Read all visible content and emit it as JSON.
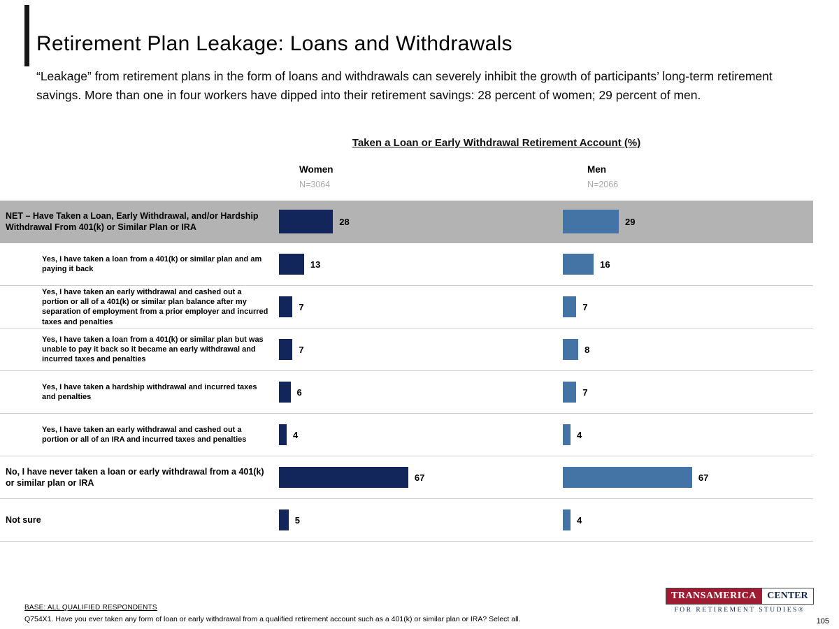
{
  "slide": {
    "title": "Retirement Plan Leakage: Loans and Withdrawals",
    "intro": "“Leakage” from retirement plans in the form of loans and withdrawals can severely inhibit the growth of participants’ long-term retirement savings. More than one in four workers have dipped into their retirement savings: 28 percent of women; 29 percent of men.",
    "page_number": "105"
  },
  "chart_data": {
    "type": "bar",
    "orientation": "horizontal",
    "title": "Taken a Loan or Early Withdrawal Retirement Account (%)",
    "value_unit": "%",
    "xlim": [
      0,
      100
    ],
    "grid": false,
    "legend_position": "column-headers",
    "highlight_row_color": "#b3b3b3",
    "categories": [
      {
        "label": "NET – Have Taken a Loan, Early Withdrawal, and/or Hardship Withdrawal From 401(k) or Similar Plan or IRA",
        "indent": false,
        "highlight": true
      },
      {
        "label": "Yes, I have taken a loan from a 401(k) or similar plan and am paying it back",
        "indent": true,
        "highlight": false
      },
      {
        "label": "Yes, I have taken an early withdrawal and cashed out a portion or all of a 401(k) or similar plan balance after my separation of employment from a prior employer and incurred taxes and penalties",
        "indent": true,
        "highlight": false
      },
      {
        "label": "Yes, I have taken a loan from a 401(k) or similar plan but was unable to pay it back so it became an early withdrawal and incurred taxes and penalties",
        "indent": true,
        "highlight": false
      },
      {
        "label": "Yes, I have taken a hardship withdrawal and incurred taxes and penalties",
        "indent": true,
        "highlight": false
      },
      {
        "label": "Yes, I have taken an early withdrawal and cashed out a portion or all of an IRA and incurred taxes and penalties",
        "indent": true,
        "highlight": false
      },
      {
        "label": "No, I have never taken a loan or early withdrawal from a 401(k) or similar plan or IRA",
        "indent": false,
        "highlight": false
      },
      {
        "label": "Not sure",
        "indent": false,
        "highlight": false
      }
    ],
    "series": [
      {
        "name": "Women",
        "n_label": "N=3064",
        "color": "#12265b",
        "values": [
          28,
          13,
          7,
          7,
          6,
          4,
          67,
          5
        ]
      },
      {
        "name": "Men",
        "n_label": "N=2066",
        "color": "#4473a5",
        "values": [
          29,
          16,
          7,
          8,
          7,
          4,
          67,
          4
        ]
      }
    ]
  },
  "footer": {
    "base": "BASE: ALL QUALIFIED RESPONDENTS",
    "question": "Q754X1. Have you ever taken any form of loan or early withdrawal from a qualified retirement account such as a 401(k) or similar plan or IRA? Select all."
  },
  "logo": {
    "brand": "TRANSAMERICA",
    "center": "CENTER",
    "subtitle": "FOR RETIREMENT STUDIES®"
  }
}
